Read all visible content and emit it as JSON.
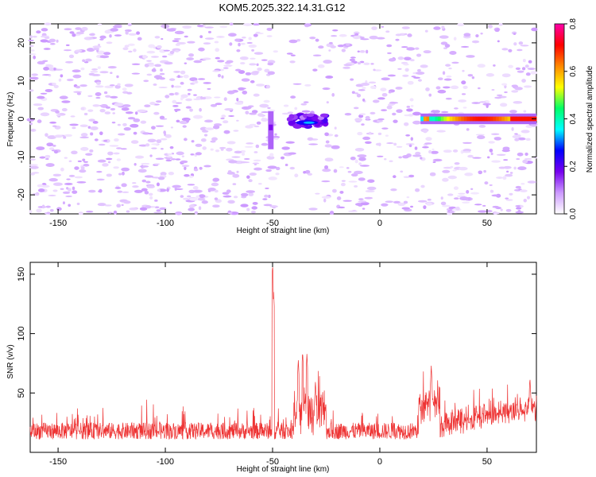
{
  "title": "KOM5.2025.322.14.31.G12",
  "chart_data": [
    {
      "type": "heatmap",
      "xlabel": "Height of straight line (km)",
      "ylabel": "Frequency (Hz)",
      "xlim": [
        -163,
        73
      ],
      "ylim": [
        -25,
        25
      ],
      "xticks": [
        -150,
        -100,
        -50,
        0,
        50
      ],
      "yticks": [
        -20,
        -10,
        0,
        10,
        20
      ],
      "x_tick_labels": [
        "-150",
        "-100",
        "-50",
        "0",
        "50"
      ],
      "y_tick_labels": [
        "-20",
        "-10",
        "0",
        "10",
        "20"
      ],
      "colorbar": {
        "label": "Normalized spectral amplitude",
        "range": [
          0.0,
          0.8
        ],
        "ticks": [
          0.0,
          0.2,
          0.4,
          0.6,
          0.8
        ],
        "tick_labels": [
          "0.0",
          "0.2",
          "0.4",
          "0.6",
          "0.8"
        ],
        "colors": [
          "#ffffff",
          "#cc99ff",
          "#7700ee",
          "#0000ff",
          "#00ffff",
          "#00ff66",
          "#ffff00",
          "#ff8800",
          "#ff0000",
          "#ff00aa"
        ]
      },
      "features": [
        {
          "name": "noise speckle",
          "x_range": [
            -163,
            73
          ],
          "freq_range": [
            -25,
            25
          ],
          "amplitude": 0.05
        },
        {
          "name": "vertical streak",
          "x": -51,
          "freq_range": [
            -8,
            2
          ],
          "amplitude": 0.12
        },
        {
          "name": "blob",
          "x_range": [
            -42,
            -25
          ],
          "freq_range": [
            -2,
            1
          ],
          "amplitude": 0.3
        },
        {
          "name": "carrier line",
          "x_range": [
            19,
            73
          ],
          "freq": 0,
          "amplitude": 0.6
        }
      ]
    },
    {
      "type": "line",
      "xlabel": "Height of straight line (km)",
      "ylabel": "SNR (v/v)",
      "xlim": [
        -163,
        73
      ],
      "ylim": [
        0,
        160
      ],
      "xticks": [
        -150,
        -100,
        -50,
        0,
        50
      ],
      "yticks": [
        50,
        100,
        150
      ],
      "x_tick_labels": [
        "-150",
        "-100",
        "-50",
        "0",
        "50"
      ],
      "y_tick_labels": [
        "50",
        "100",
        "150"
      ],
      "series": [
        {
          "name": "SNR",
          "color": "#ee3333",
          "baseline": 18,
          "peaks": [
            {
              "x": -50,
              "value": 158
            },
            {
              "x": -49.5,
              "value": 135
            },
            {
              "x": -36,
              "value": 85
            },
            {
              "x": -34,
              "value": 83
            },
            {
              "x": -38,
              "value": 78
            },
            {
              "x": -30,
              "value": 60
            },
            {
              "x": 24,
              "value": 73
            },
            {
              "x": 70,
              "value": 63
            }
          ]
        }
      ]
    }
  ]
}
